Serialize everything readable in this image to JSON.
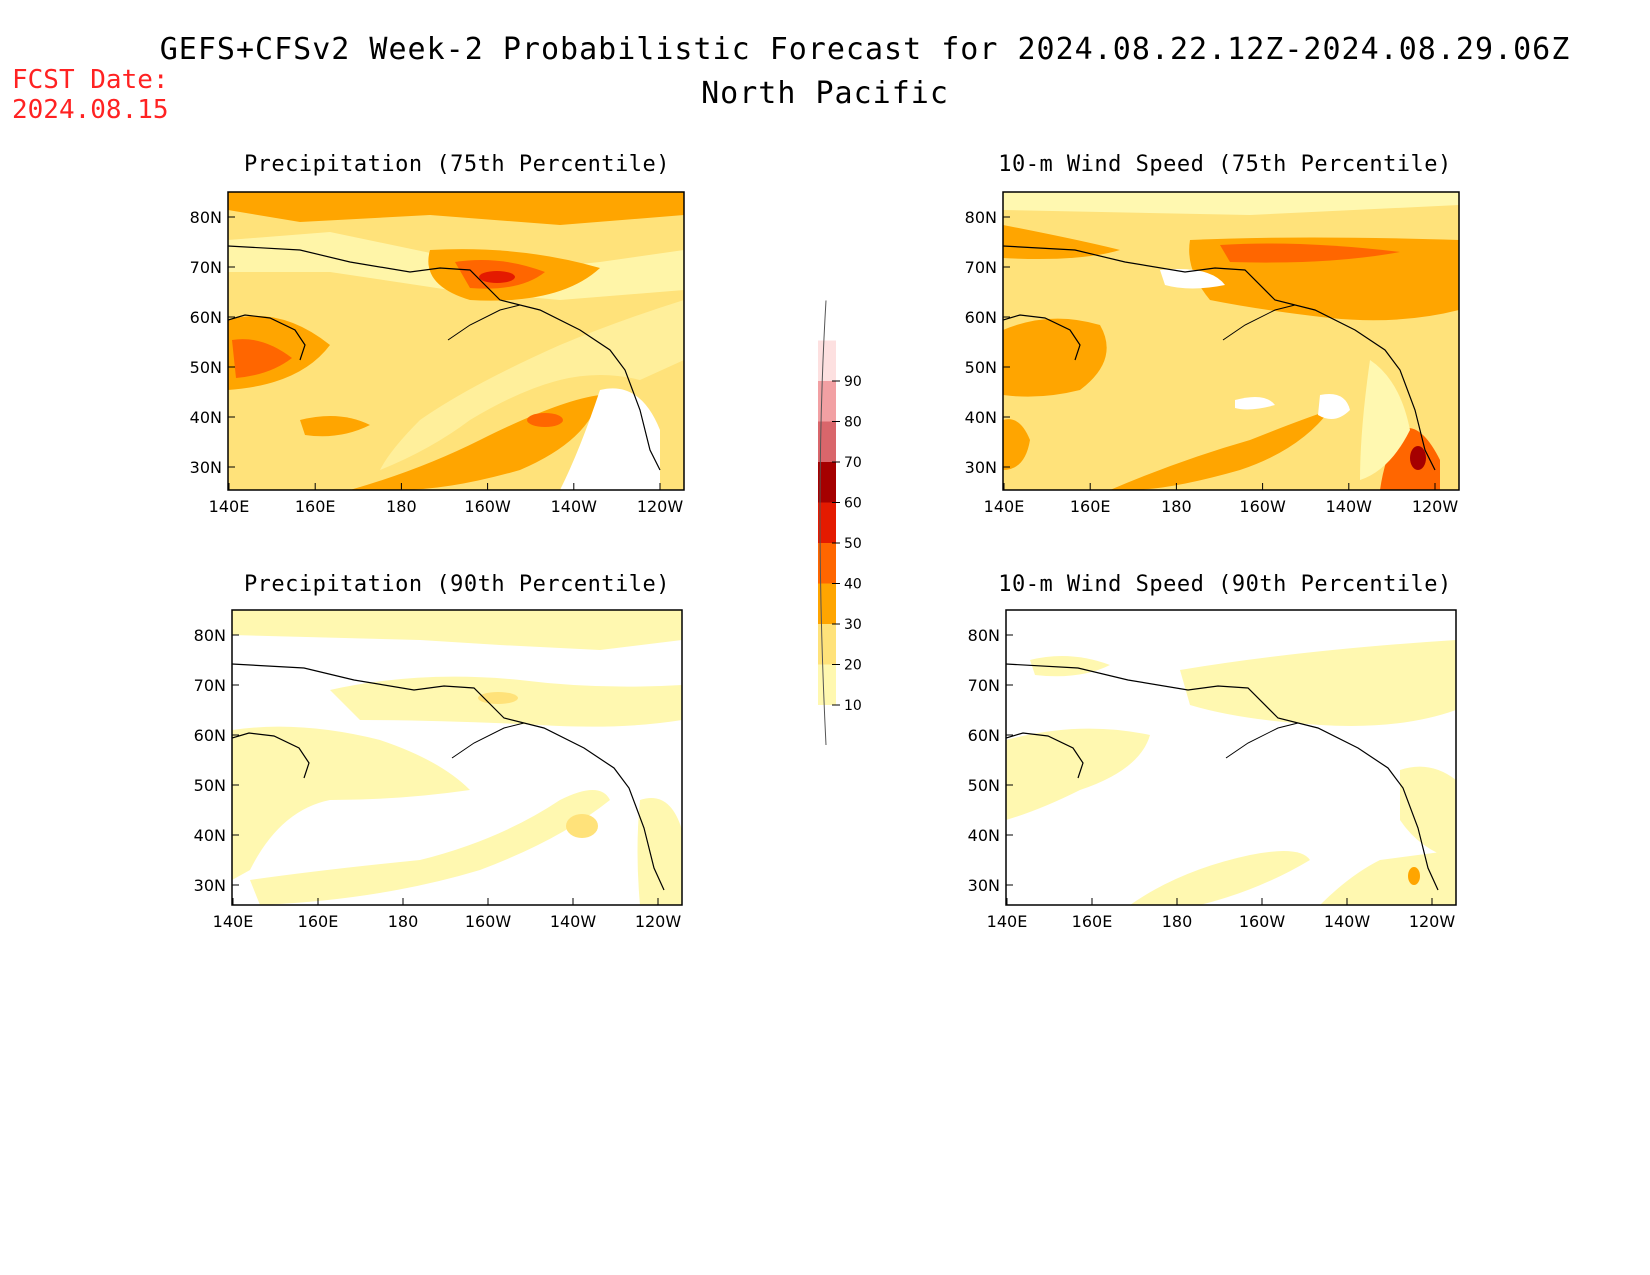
{
  "header": {
    "title": "GEFS+CFSv2 Week-2 Probabilistic Forecast for 2024.08.22.12Z-2024.08.29.06Z",
    "subtitle": "North Pacific",
    "fcst_label": "FCST Date:",
    "fcst_date": "2024.08.15"
  },
  "panels": [
    {
      "title": "Precipitation (75th Percentile)"
    },
    {
      "title": "10-m Wind Speed (75th Percentile)"
    },
    {
      "title": "Precipitation (90th Percentile)"
    },
    {
      "title": "10-m Wind Speed (90th Percentile)"
    }
  ],
  "axes": {
    "lon_labels": [
      "140E",
      "160E",
      "180",
      "160W",
      "140W",
      "120W"
    ],
    "lat_labels": [
      "80N",
      "70N",
      "60N",
      "50N",
      "40N",
      "30N"
    ]
  },
  "colorbar": {
    "levels": [
      "10",
      "20",
      "30",
      "40",
      "50",
      "60",
      "70",
      "80",
      "90"
    ],
    "colors": [
      "#fff8b0",
      "#ffe27a",
      "#ffa500",
      "#ff6600",
      "#e41a00",
      "#a50000",
      "#d9666b",
      "#f2a0a3",
      "#fde0e0"
    ]
  }
}
